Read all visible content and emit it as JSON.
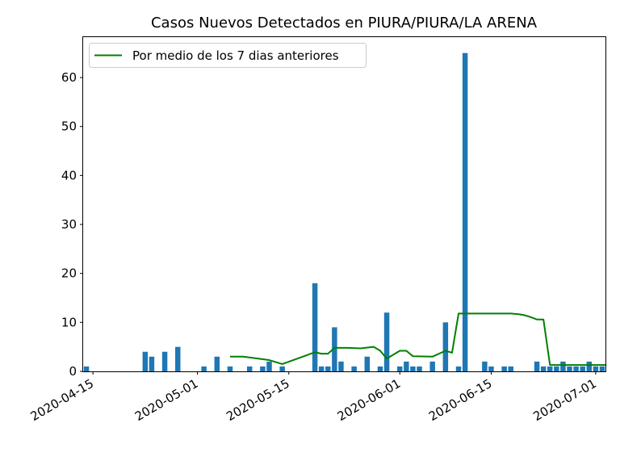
{
  "chart_data": {
    "type": "bar",
    "title": "Casos Nuevos Detectados en PIURA/PIURA/LA ARENA",
    "xlabel": "",
    "ylabel": "",
    "ylim": [
      0,
      68.25
    ],
    "xlim": [
      "2020-04-14",
      "2020-07-03"
    ],
    "x_ticks": [
      "2020-04-15",
      "2020-05-01",
      "2020-05-15",
      "2020-06-01",
      "2020-06-15",
      "2020-07-01"
    ],
    "y_ticks": [
      0,
      10,
      20,
      30,
      40,
      50,
      60
    ],
    "grid": false,
    "legend": {
      "position": "top-left",
      "entries": [
        "Por medio de los 7 dias anteriores"
      ]
    },
    "colors": {
      "bars": "#1f77b4",
      "line": "#008000"
    },
    "series": [
      {
        "kind": "bar",
        "x": [
          "2020-04-14",
          "2020-04-23",
          "2020-04-24",
          "2020-04-26",
          "2020-04-28",
          "2020-05-02",
          "2020-05-04",
          "2020-05-06",
          "2020-05-09",
          "2020-05-11",
          "2020-05-12",
          "2020-05-14",
          "2020-05-19",
          "2020-05-20",
          "2020-05-21",
          "2020-05-22",
          "2020-05-23",
          "2020-05-25",
          "2020-05-27",
          "2020-05-29",
          "2020-05-30",
          "2020-06-01",
          "2020-06-02",
          "2020-06-03",
          "2020-06-04",
          "2020-06-06",
          "2020-06-08",
          "2020-06-10",
          "2020-06-11",
          "2020-06-14",
          "2020-06-15",
          "2020-06-17",
          "2020-06-18",
          "2020-06-22",
          "2020-06-23",
          "2020-06-24",
          "2020-06-25",
          "2020-06-26",
          "2020-06-27",
          "2020-06-28",
          "2020-06-29",
          "2020-06-30",
          "2020-07-01",
          "2020-07-02"
        ],
        "values": [
          1,
          4,
          3,
          4,
          5,
          1,
          3,
          1,
          1,
          1,
          2,
          1,
          18,
          1,
          1,
          9,
          2,
          1,
          3,
          1,
          12,
          1,
          2,
          1,
          1,
          2,
          10,
          1,
          65,
          2,
          1,
          1,
          1,
          2,
          1,
          1,
          1,
          2,
          1,
          1,
          1,
          2,
          1,
          1
        ]
      },
      {
        "kind": "line",
        "name": "Por medio de los 7 dias anteriores",
        "x": [
          "2020-05-06",
          "2020-05-08",
          "2020-05-12",
          "2020-05-14",
          "2020-05-19",
          "2020-05-20",
          "2020-05-21",
          "2020-05-22",
          "2020-05-24",
          "2020-05-26",
          "2020-05-28",
          "2020-05-29",
          "2020-05-30",
          "2020-06-01",
          "2020-06-02",
          "2020-06-03",
          "2020-06-06",
          "2020-06-08",
          "2020-06-09",
          "2020-06-10",
          "2020-06-17",
          "2020-06-18",
          "2020-06-19",
          "2020-06-20",
          "2020-06-21",
          "2020-06-22",
          "2020-06-23",
          "2020-06-24",
          "2020-06-25",
          "2020-06-26",
          "2020-06-27",
          "2020-06-28",
          "2020-06-29",
          "2020-06-30",
          "2020-07-01",
          "2020-07-02",
          "2020-07-03"
        ],
        "values": [
          3.0,
          3.0,
          2.3,
          1.5,
          3.9,
          3.6,
          3.6,
          4.8,
          4.8,
          4.7,
          5.0,
          4.2,
          2.6,
          4.2,
          4.2,
          3.1,
          3.0,
          4.2,
          3.8,
          11.8,
          11.8,
          11.8,
          11.7,
          11.5,
          11.1,
          10.6,
          10.6,
          1.3,
          1.3,
          1.3,
          1.3,
          1.3,
          1.3,
          1.3,
          1.3,
          1.3,
          1.3
        ]
      }
    ]
  }
}
